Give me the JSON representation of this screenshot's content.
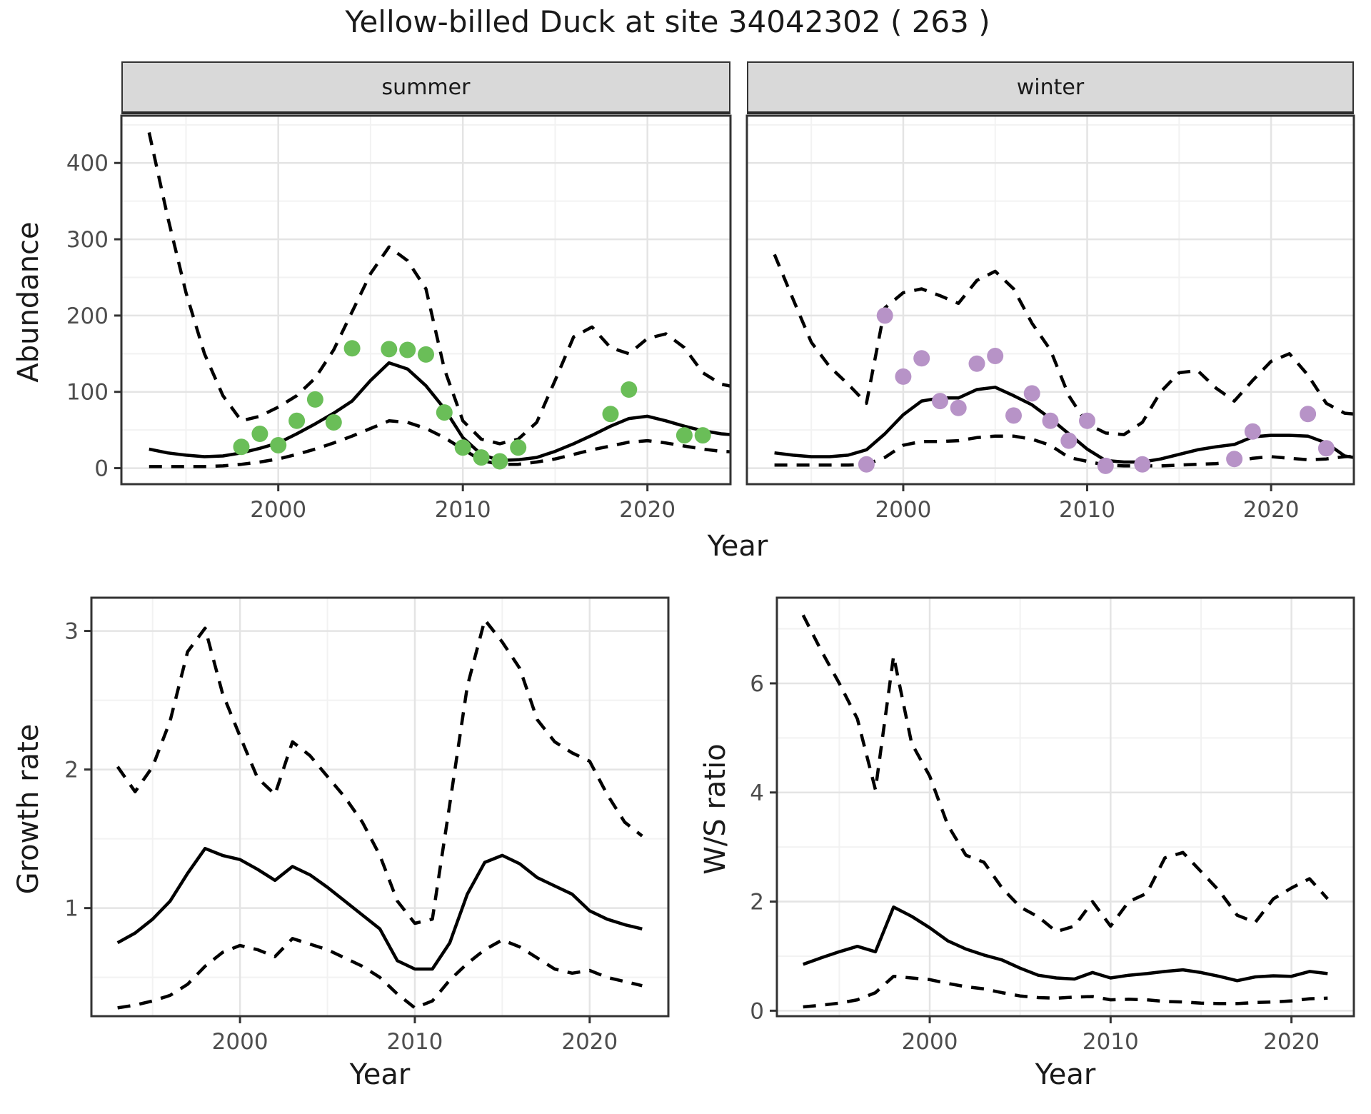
{
  "title": "Yellow-billed Duck at site 34042302 ( 263 )",
  "colors": {
    "summer_points": "#6abe58",
    "winter_points": "#b793c7",
    "line": "#000000",
    "panel_border": "#333333",
    "strip_bg": "#d9d9d9",
    "grid_major": "#e4e4e4",
    "grid_minor": "#f2f2f2",
    "tick_label": "#4d4d4d",
    "tick_mark": "#333333"
  },
  "chart_data": [
    {
      "id": "abundance-summer",
      "type": "line",
      "facet_label": "summer",
      "xlabel": "Year",
      "ylabel": "Abundance",
      "x_domain": [
        1991.5,
        2024.5
      ],
      "y_domain": [
        -21,
        462
      ],
      "x_ticks": {
        "major": [
          2000,
          2010,
          2020
        ],
        "minor": [
          1995,
          2005,
          2015
        ]
      },
      "y_ticks": {
        "major": [
          0,
          100,
          200,
          300,
          400
        ],
        "minor": [
          50,
          150,
          250,
          350,
          450
        ]
      },
      "years": [
        1993,
        1994,
        1995,
        1996,
        1997,
        1998,
        1999,
        2000,
        2001,
        2002,
        2003,
        2004,
        2005,
        2006,
        2007,
        2008,
        2009,
        2010,
        2011,
        2012,
        2013,
        2014,
        2015,
        2016,
        2017,
        2018,
        2019,
        2020,
        2021,
        2022,
        2023,
        2024,
        2025
      ],
      "series": [
        {
          "name": "upper-ci",
          "style": "dashed",
          "values": [
            440,
            330,
            230,
            150,
            95,
            62,
            68,
            80,
            95,
            118,
            155,
            205,
            255,
            290,
            272,
            235,
            130,
            62,
            38,
            32,
            38,
            60,
            115,
            172,
            185,
            158,
            150,
            170,
            176,
            158,
            125,
            110,
            105
          ]
        },
        {
          "name": "lower-ci",
          "style": "dashed",
          "values": [
            2,
            2,
            2,
            2,
            3,
            5,
            8,
            12,
            18,
            25,
            33,
            42,
            52,
            62,
            60,
            52,
            40,
            25,
            10,
            5,
            5,
            8,
            12,
            18,
            24,
            29,
            34,
            36,
            33,
            29,
            25,
            22,
            21
          ]
        },
        {
          "name": "fit",
          "style": "solid",
          "values": [
            25,
            20,
            17,
            15,
            16,
            20,
            26,
            33,
            45,
            58,
            72,
            88,
            115,
            138,
            130,
            108,
            78,
            40,
            18,
            10,
            11,
            14,
            22,
            32,
            43,
            55,
            65,
            68,
            62,
            55,
            49,
            45,
            43
          ]
        }
      ],
      "points": {
        "color": "#6abe58",
        "data": [
          [
            1998,
            28
          ],
          [
            1999,
            45
          ],
          [
            2000,
            30
          ],
          [
            2001,
            62
          ],
          [
            2002,
            90
          ],
          [
            2003,
            60
          ],
          [
            2004,
            157
          ],
          [
            2006,
            156
          ],
          [
            2007,
            155
          ],
          [
            2008,
            149
          ],
          [
            2009,
            73
          ],
          [
            2010,
            27
          ],
          [
            2011,
            14
          ],
          [
            2012,
            9
          ],
          [
            2013,
            27
          ],
          [
            2018,
            71
          ],
          [
            2019,
            103
          ],
          [
            2022,
            43
          ],
          [
            2023,
            43
          ]
        ]
      }
    },
    {
      "id": "abundance-winter",
      "type": "line",
      "facet_label": "winter",
      "xlabel": "Year",
      "ylabel": "Abundance",
      "x_domain": [
        1991.5,
        2024.5
      ],
      "y_domain": [
        -21,
        462
      ],
      "x_ticks": {
        "major": [
          2000,
          2010,
          2020
        ],
        "minor": [
          1995,
          2005,
          2015
        ]
      },
      "y_ticks": {
        "major": [
          0,
          100,
          200,
          300,
          400
        ],
        "minor": [
          50,
          150,
          250,
          350,
          450
        ]
      },
      "years": [
        1993,
        1994,
        1995,
        1996,
        1997,
        1998,
        1999,
        2000,
        2001,
        2002,
        2003,
        2004,
        2005,
        2006,
        2007,
        2008,
        2009,
        2010,
        2011,
        2012,
        2013,
        2014,
        2015,
        2016,
        2017,
        2018,
        2019,
        2020,
        2021,
        2022,
        2023,
        2024,
        2025
      ],
      "series": [
        {
          "name": "upper-ci",
          "style": "dashed",
          "values": [
            280,
            222,
            165,
            133,
            110,
            85,
            210,
            230,
            235,
            226,
            216,
            246,
            258,
            235,
            190,
            155,
            95,
            58,
            46,
            44,
            60,
            100,
            125,
            128,
            105,
            88,
            115,
            140,
            150,
            122,
            85,
            72,
            70
          ]
        },
        {
          "name": "lower-ci",
          "style": "dashed",
          "values": [
            4,
            4,
            4,
            4,
            4,
            5,
            14,
            30,
            35,
            35,
            36,
            40,
            42,
            42,
            38,
            30,
            14,
            9,
            4,
            3,
            3,
            3,
            4,
            5,
            6,
            8,
            13,
            15,
            13,
            11,
            12,
            15,
            16
          ]
        },
        {
          "name": "fit",
          "style": "solid",
          "values": [
            20,
            17,
            15,
            15,
            17,
            24,
            45,
            70,
            88,
            92,
            92,
            103,
            106,
            95,
            83,
            65,
            45,
            25,
            10,
            8,
            8,
            12,
            18,
            24,
            28,
            31,
            41,
            43,
            43,
            42,
            33,
            16,
            12
          ]
        }
      ],
      "points": {
        "color": "#b793c7",
        "data": [
          [
            1998,
            5
          ],
          [
            1999,
            200
          ],
          [
            2000,
            120
          ],
          [
            2001,
            144
          ],
          [
            2002,
            88
          ],
          [
            2003,
            79
          ],
          [
            2004,
            137
          ],
          [
            2005,
            147
          ],
          [
            2006,
            69
          ],
          [
            2007,
            98
          ],
          [
            2008,
            62
          ],
          [
            2009,
            36
          ],
          [
            2010,
            62
          ],
          [
            2011,
            3
          ],
          [
            2013,
            5
          ],
          [
            2018,
            12
          ],
          [
            2019,
            48
          ],
          [
            2022,
            71
          ],
          [
            2023,
            26
          ]
        ]
      }
    },
    {
      "id": "growth-rate",
      "type": "line",
      "facet_label": "",
      "xlabel": "Year",
      "ylabel": "Growth rate",
      "x_domain": [
        1991.5,
        2024.5
      ],
      "y_domain": [
        0.22,
        3.24
      ],
      "x_ticks": {
        "major": [
          2000,
          2010,
          2020
        ],
        "minor": [
          1995,
          2005,
          2015
        ]
      },
      "y_ticks": {
        "major": [
          1,
          2,
          3
        ],
        "minor": [
          0.5,
          1.5,
          2.5
        ]
      },
      "years": [
        1993,
        1994,
        1995,
        1996,
        1997,
        1998,
        1999,
        2000,
        2001,
        2002,
        2003,
        2004,
        2005,
        2006,
        2007,
        2008,
        2009,
        2010,
        2011,
        2012,
        2013,
        2014,
        2015,
        2016,
        2017,
        2018,
        2019,
        2020,
        2021,
        2022,
        2023
      ],
      "series": [
        {
          "name": "upper-ci",
          "style": "dashed",
          "values": [
            2.02,
            1.84,
            2.02,
            2.35,
            2.85,
            3.02,
            2.55,
            2.24,
            1.94,
            1.82,
            2.2,
            2.1,
            1.95,
            1.8,
            1.62,
            1.38,
            1.05,
            0.89,
            0.92,
            1.75,
            2.6,
            3.08,
            2.92,
            2.73,
            2.36,
            2.2,
            2.12,
            2.06,
            1.82,
            1.62,
            1.52
          ]
        },
        {
          "name": "lower-ci",
          "style": "dashed",
          "values": [
            0.28,
            0.3,
            0.33,
            0.37,
            0.45,
            0.58,
            0.68,
            0.73,
            0.7,
            0.65,
            0.78,
            0.74,
            0.7,
            0.64,
            0.58,
            0.5,
            0.38,
            0.28,
            0.33,
            0.48,
            0.6,
            0.7,
            0.77,
            0.72,
            0.64,
            0.56,
            0.53,
            0.55,
            0.5,
            0.47,
            0.44
          ]
        },
        {
          "name": "fit",
          "style": "solid",
          "values": [
            0.75,
            0.82,
            0.92,
            1.05,
            1.25,
            1.43,
            1.38,
            1.35,
            1.28,
            1.2,
            1.3,
            1.24,
            1.15,
            1.05,
            0.95,
            0.85,
            0.62,
            0.56,
            0.56,
            0.75,
            1.1,
            1.33,
            1.38,
            1.32,
            1.22,
            1.16,
            1.1,
            0.98,
            0.92,
            0.88,
            0.85
          ]
        }
      ],
      "points": {
        "color": "",
        "data": []
      }
    },
    {
      "id": "ws-ratio",
      "type": "line",
      "facet_label": "",
      "xlabel": "Year",
      "ylabel": "W/S ratio",
      "x_domain": [
        1991.55,
        2023.45
      ],
      "y_domain": [
        -0.1,
        7.57
      ],
      "x_ticks": {
        "major": [
          2000,
          2010,
          2020
        ],
        "minor": [
          1995,
          2005,
          2015
        ]
      },
      "y_ticks": {
        "major": [
          0,
          2,
          4,
          6
        ],
        "minor": [
          1,
          3,
          5,
          7
        ]
      },
      "years": [
        1993,
        1994,
        1995,
        1996,
        1997,
        1998,
        1999,
        2000,
        2001,
        2002,
        2003,
        2004,
        2005,
        2006,
        2007,
        2008,
        2009,
        2010,
        2011,
        2012,
        2013,
        2014,
        2015,
        2016,
        2017,
        2018,
        2019,
        2020,
        2021,
        2022
      ],
      "series": [
        {
          "name": "upper-ci",
          "style": "dashed",
          "values": [
            7.25,
            6.6,
            6.0,
            5.35,
            4.05,
            6.5,
            4.9,
            4.3,
            3.4,
            2.85,
            2.72,
            2.25,
            1.9,
            1.72,
            1.45,
            1.55,
            2.0,
            1.55,
            2.0,
            2.15,
            2.8,
            2.9,
            2.55,
            2.2,
            1.75,
            1.62,
            2.05,
            2.25,
            2.42,
            2.05
          ]
        },
        {
          "name": "lower-ci",
          "style": "dashed",
          "values": [
            0.07,
            0.1,
            0.14,
            0.2,
            0.33,
            0.63,
            0.6,
            0.57,
            0.5,
            0.44,
            0.4,
            0.33,
            0.27,
            0.24,
            0.23,
            0.25,
            0.26,
            0.2,
            0.21,
            0.2,
            0.17,
            0.16,
            0.14,
            0.13,
            0.13,
            0.15,
            0.16,
            0.18,
            0.22,
            0.23
          ]
        },
        {
          "name": "fit",
          "style": "solid",
          "values": [
            0.85,
            0.97,
            1.08,
            1.18,
            1.08,
            1.9,
            1.73,
            1.52,
            1.28,
            1.13,
            1.02,
            0.93,
            0.78,
            0.65,
            0.6,
            0.58,
            0.7,
            0.6,
            0.65,
            0.68,
            0.72,
            0.75,
            0.7,
            0.63,
            0.55,
            0.62,
            0.64,
            0.63,
            0.72,
            0.68
          ]
        }
      ],
      "points": {
        "color": "",
        "data": []
      }
    }
  ]
}
